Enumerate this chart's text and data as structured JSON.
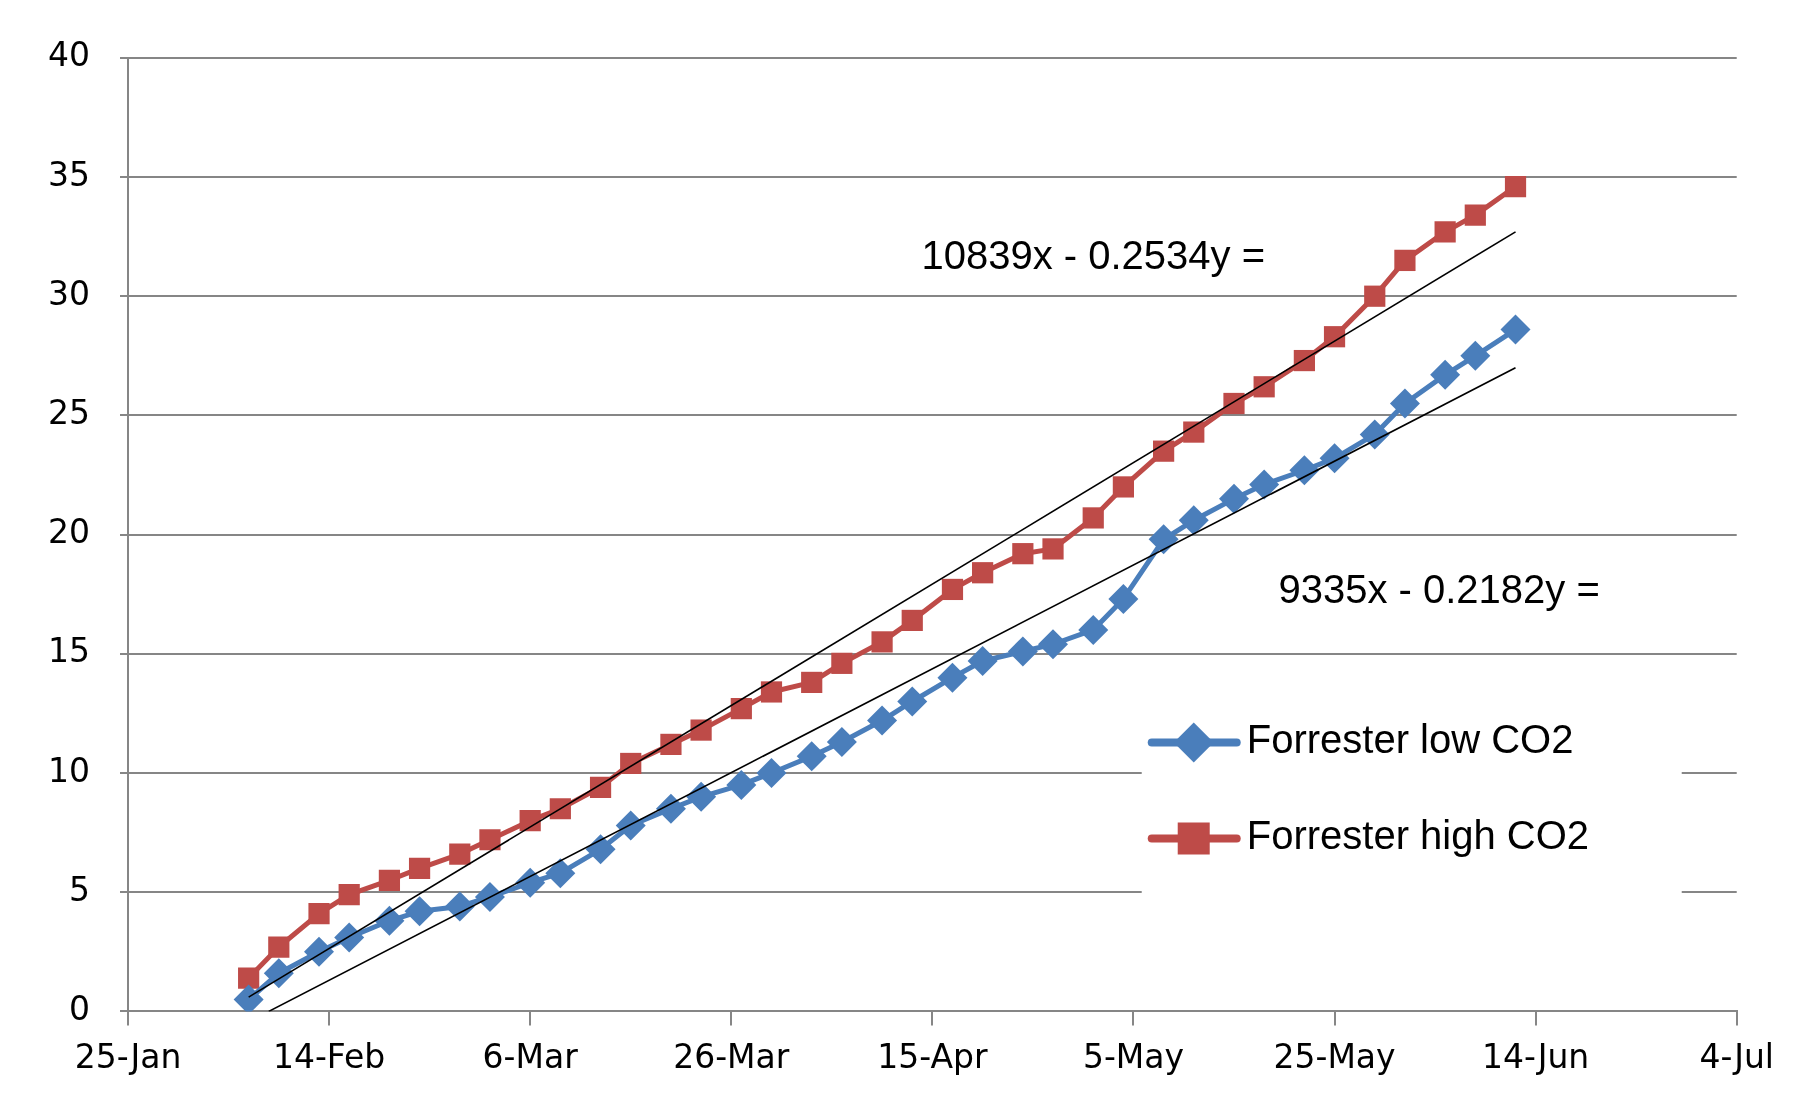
{
  "chart_data": {
    "type": "line",
    "legend": "bottom right",
    "grid": "y",
    "line_style": "solid",
    "x": [
      "--02-06",
      "--02-09",
      "--02-13",
      "--02-16",
      "--02-20",
      "--02-23",
      "--02-27",
      "--03-02",
      "--03-06",
      "--03-09",
      "--03-13",
      "--03-16",
      "--03-20",
      "--03-23",
      "--03-27",
      "--03-30",
      "--04-03",
      "--04-06",
      "--04-10",
      "--04-13",
      "--04-17",
      "--04-20",
      "--04-24",
      "--04-27",
      "--05-01",
      "--05-04",
      "--05-08",
      "--05-11",
      "--05-15",
      "--05-18",
      "--05-22",
      "--05-25",
      "--05-29",
      "--06-01",
      "--06-05",
      "--06-08",
      "--06-12"
    ],
    "xlim": [
      "--01-25",
      "--07-04"
    ],
    "xticks": [
      {
        "value": "--01-25",
        "label": "25-Jan"
      },
      {
        "value": "--02-14",
        "label": "14-Feb"
      },
      {
        "value": "--03-06",
        "label": "6-Mar"
      },
      {
        "value": "--03-26",
        "label": "26-Mar"
      },
      {
        "value": "--04-15",
        "label": "15-Apr"
      },
      {
        "value": "--05-05",
        "label": "5-May"
      },
      {
        "value": "--05-25",
        "label": "25-May"
      },
      {
        "value": "--06-14",
        "label": "14-Jun"
      },
      {
        "value": "--07-04",
        "label": "4-Jul"
      }
    ],
    "ylim": [
      0,
      40
    ],
    "yticks": [
      0,
      5,
      10,
      15,
      20,
      25,
      30,
      35,
      40
    ],
    "series": [
      {
        "name": "Forrester low CO2",
        "color": "#4a7ebb",
        "marker": "diamond",
        "values": [
          0.5,
          1.6,
          2.5,
          3.1,
          3.8,
          4.2,
          4.4,
          4.8,
          5.4,
          5.8,
          6.8,
          7.8,
          8.5,
          9.0,
          9.5,
          10.0,
          10.7,
          11.3,
          12.2,
          13.0,
          14.0,
          14.7,
          15.1,
          15.4,
          16.0,
          17.3,
          19.8,
          20.6,
          21.5,
          22.1,
          22.7,
          23.2,
          24.2,
          25.5,
          26.7,
          27.5,
          28.6
        ]
      },
      {
        "name": "Forrester high CO2",
        "color": "#be4b48",
        "marker": "square",
        "values": [
          1.4,
          2.7,
          4.1,
          4.9,
          5.5,
          6.0,
          6.6,
          7.2,
          8.0,
          8.5,
          9.4,
          10.4,
          11.2,
          11.8,
          12.7,
          13.4,
          13.8,
          14.6,
          15.5,
          16.4,
          17.7,
          18.4,
          19.2,
          19.4,
          20.7,
          22.0,
          23.5,
          24.3,
          25.5,
          26.2,
          27.3,
          28.3,
          30.0,
          31.5,
          32.7,
          33.4,
          34.6
        ]
      },
      {
        "type": "line",
        "color": "#000000",
        "marker": "none",
        "x": [
          "--02-06",
          "--06-12"
        ],
        "values": [
          0.6,
          32.7
        ]
      },
      {
        "type": "line",
        "color": "#000000",
        "marker": "none",
        "x": [
          "--02-08",
          "--06-12"
        ],
        "values": [
          0.0,
          27.0
        ]
      }
    ],
    "annotations": [
      "10839x - 0.2534y =",
      "9335x - 0.2182y ="
    ]
  }
}
